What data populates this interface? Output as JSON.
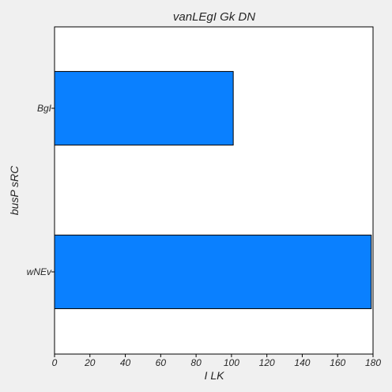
{
  "chart_data": {
    "type": "bar",
    "orientation": "horizontal",
    "title": "vanLEgI Gk DN",
    "xlabel": "I LK",
    "ylabel": "busP sRC",
    "categories": [
      "BgI",
      "wNEv"
    ],
    "values": [
      101,
      179
    ],
    "xlim": [
      0,
      180
    ],
    "xticks": [
      0,
      20,
      40,
      60,
      80,
      100,
      120,
      140,
      160,
      180
    ],
    "grid": false,
    "bar_color": "#0a80ff",
    "background": "#ffffff"
  }
}
